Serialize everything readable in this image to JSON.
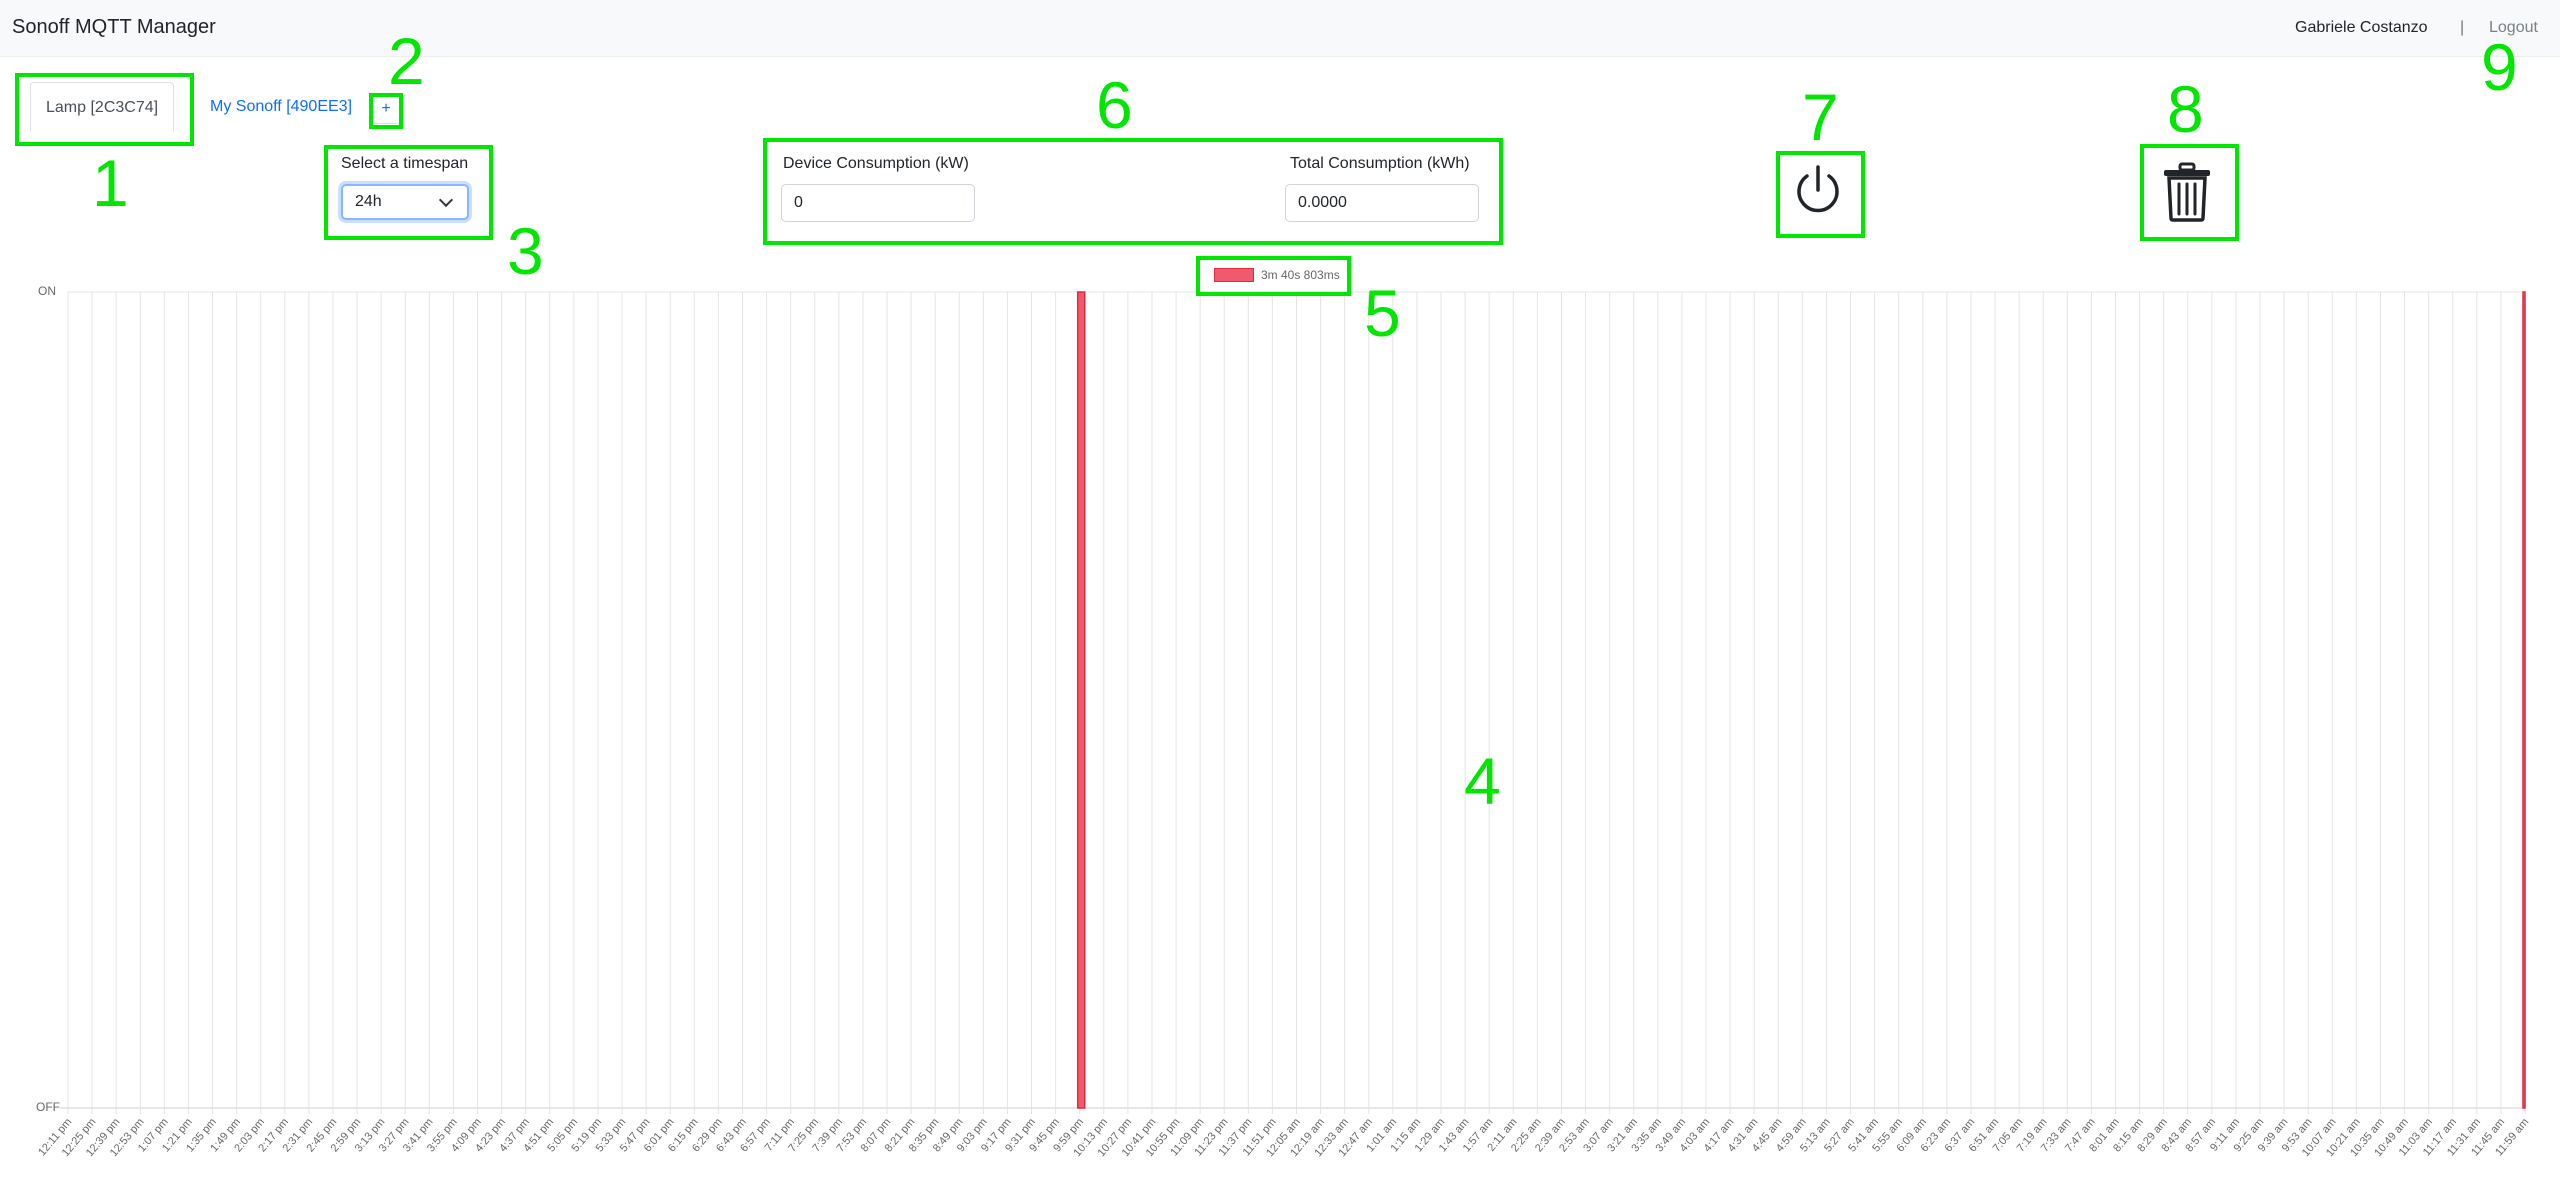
{
  "app": {
    "title": "Sonoff MQTT Manager"
  },
  "user": {
    "name": "Gabriele Costanzo",
    "separator": "|",
    "logout_label": "Logout"
  },
  "tabs": [
    {
      "label": "Lamp [2C3C74]",
      "active": true
    },
    {
      "label": "My Sonoff [490EE3]",
      "active": false
    }
  ],
  "add_tab_label": "+",
  "timespan": {
    "label": "Select a timespan",
    "value": "24h"
  },
  "consumption": {
    "device_label": "Device Consumption (kW)",
    "device_value": "0",
    "total_label": "Total Consumption (kWh)",
    "total_value": "0.0000"
  },
  "icons": {
    "power": "power-icon",
    "delete": "trash-icon"
  },
  "annotations": [
    "1",
    "2",
    "3",
    "4",
    "5",
    "6",
    "7",
    "8",
    "9"
  ],
  "colors": {
    "annotation": "#00e600",
    "on_state": "#f05a6c",
    "link": "#0d6efd"
  },
  "chart_data": {
    "type": "bar",
    "legend": [
      "3m 40s 803ms"
    ],
    "y_categories": [
      "OFF",
      "ON"
    ],
    "x_ticks": [
      "12:11 pm",
      "12:25 pm",
      "12:39 pm",
      "12:53 pm",
      "1:07 pm",
      "1:21 pm",
      "1:35 pm",
      "1:49 pm",
      "2:03 pm",
      "2:17 pm",
      "2:31 pm",
      "2:45 pm",
      "2:59 pm",
      "3:13 pm",
      "3:27 pm",
      "3:41 pm",
      "3:55 pm",
      "4:09 pm",
      "4:23 pm",
      "4:37 pm",
      "4:51 pm",
      "5:05 pm",
      "5:19 pm",
      "5:33 pm",
      "5:47 pm",
      "6:01 pm",
      "6:15 pm",
      "6:29 pm",
      "6:43 pm",
      "6:57 pm",
      "7:11 pm",
      "7:25 pm",
      "7:39 pm",
      "7:53 pm",
      "8:07 pm",
      "8:21 pm",
      "8:35 pm",
      "8:49 pm",
      "9:03 pm",
      "9:17 pm",
      "9:31 pm",
      "9:45 pm",
      "9:59 pm",
      "10:13 pm",
      "10:27 pm",
      "10:41 pm",
      "10:55 pm",
      "11:09 pm",
      "11:23 pm",
      "11:37 pm",
      "11:51 pm",
      "12:05 am",
      "12:19 am",
      "12:33 am",
      "12:47 am",
      "1:01 am",
      "1:15 am",
      "1:29 am",
      "1:43 am",
      "1:57 am",
      "2:11 am",
      "2:25 am",
      "2:39 am",
      "2:53 am",
      "3:07 am",
      "3:21 am",
      "3:35 am",
      "3:49 am",
      "4:03 am",
      "4:17 am",
      "4:31 am",
      "4:45 am",
      "4:59 am",
      "5:13 am",
      "5:27 am",
      "5:41 am",
      "5:55 am",
      "6:09 am",
      "6:23 am",
      "6:37 am",
      "6:51 am",
      "7:05 am",
      "7:19 am",
      "7:33 am",
      "7:47 am",
      "8:01 am",
      "8:15 am",
      "8:29 am",
      "8:43 am",
      "8:57 am",
      "9:11 am",
      "9:25 am",
      "9:39 am",
      "9:53 am",
      "10:07 am",
      "10:21 am",
      "10:35 am",
      "10:49 am",
      "11:03 am",
      "11:17 am",
      "11:31 am",
      "11:45 am",
      "11:59 am"
    ],
    "on_intervals": [
      {
        "start": "9:59 pm",
        "end": "10:03 pm",
        "duration": "3m 40s 803ms"
      },
      {
        "start": "11:59 am",
        "end": "12:00 pm"
      }
    ],
    "grid": true,
    "legend_position": "top-center"
  }
}
